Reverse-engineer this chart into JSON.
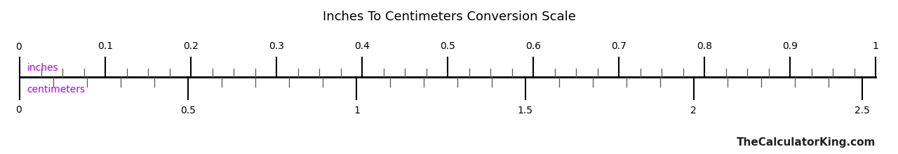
{
  "title": "Inches To Centimeters Conversion Scale",
  "title_fontsize": 13,
  "label_inches": "inches",
  "label_cm": "centimeters",
  "label_color": "#aa00ff",
  "watermark": "TheCalculatorKing.com",
  "watermark_color": "#222222",
  "watermark_fontsize": 11,
  "inches_min": 0,
  "inches_max": 1,
  "cm_min": 0,
  "cm_max": 2.54,
  "inches_major_ticks": [
    0,
    0.1,
    0.2,
    0.3,
    0.4,
    0.5,
    0.6,
    0.7,
    0.8,
    0.9,
    1.0
  ],
  "inches_minor_step": 0.025,
  "cm_major_ticks": [
    0,
    0.5,
    1.0,
    1.5,
    2.0,
    2.5
  ],
  "cm_minor_step": 0.1,
  "background_color": "#ffffff",
  "line_color": "#000000",
  "tick_color": "#555555",
  "fig_width": 12.8,
  "fig_height": 2.2,
  "dpi": 100
}
